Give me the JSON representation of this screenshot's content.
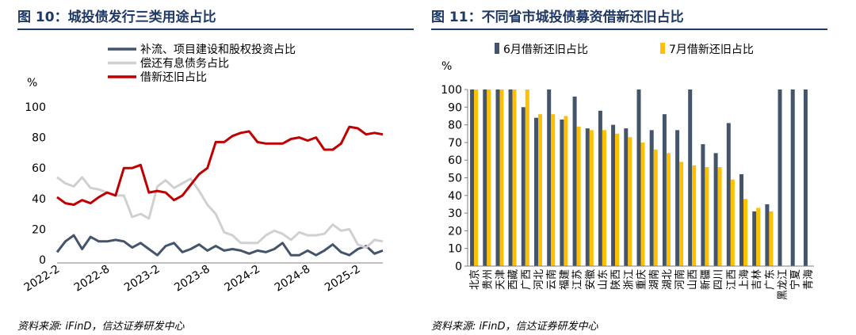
{
  "left": {
    "title": "图 10：城投债发行三类用途占比",
    "source": "资料来源: iFinD，信达证券研发中心",
    "chart_data": {
      "type": "line",
      "ylabel": "%",
      "ylim": [
        0,
        100
      ],
      "yticks": [
        0,
        20,
        40,
        60,
        80,
        100
      ],
      "xtick_labels": [
        "2022-2",
        "2022-8",
        "2023-2",
        "2023-8",
        "2024-2",
        "2024-8",
        "2025-2"
      ],
      "xtick_index": [
        0,
        6,
        12,
        18,
        24,
        30,
        36
      ],
      "legend_position": "top",
      "series": [
        {
          "name": "补流、项目建设和股权投资占比",
          "color": "#44546a",
          "values": [
            5,
            12,
            16,
            7,
            15,
            12,
            12,
            13,
            12,
            8,
            11,
            7,
            3,
            9,
            11,
            5,
            7,
            10,
            6,
            9,
            6,
            7,
            6,
            4,
            6,
            5,
            7,
            11,
            3,
            3,
            6,
            3,
            6,
            10,
            5,
            3,
            7,
            9,
            4,
            6
          ]
        },
        {
          "name": "偿还有息债务占比",
          "color": "#d0d0d0",
          "values": [
            54,
            50,
            48,
            54,
            47,
            46,
            44,
            42,
            42,
            28,
            30,
            27,
            48,
            52,
            47,
            50,
            53,
            45,
            36,
            30,
            18,
            16,
            11,
            11,
            11,
            16,
            19,
            17,
            13,
            18,
            16,
            16,
            17,
            23,
            19,
            20,
            10,
            8,
            13,
            12
          ]
        },
        {
          "name": "借新还旧占比",
          "color": "#c00000",
          "values": [
            41,
            37,
            36,
            39,
            37,
            41,
            44,
            42,
            60,
            60,
            62,
            44,
            45,
            44,
            39,
            42,
            49,
            56,
            60,
            77,
            77,
            81,
            83,
            84,
            77,
            76,
            76,
            76,
            79,
            80,
            78,
            80,
            72,
            72,
            76,
            87,
            86,
            82,
            83,
            82
          ]
        }
      ]
    }
  },
  "right": {
    "title": "图 11：不同省市城投债募资借新还旧占比",
    "source": "资料来源: iFinD，信达证券研发中心",
    "chart_data": {
      "type": "bar",
      "ylabel": "%",
      "ylim": [
        0,
        100
      ],
      "yticks": [
        0,
        10,
        20,
        30,
        40,
        50,
        60,
        70,
        80,
        90,
        100
      ],
      "legend_position": "top",
      "categories": [
        "北京",
        "贵州",
        "天津",
        "西藏",
        "广西",
        "河北",
        "云南",
        "福建",
        "江苏",
        "安徽",
        "山东",
        "陕西",
        "浙江",
        "重庆",
        "湖南",
        "湖北",
        "河南",
        "山西",
        "新疆",
        "四川",
        "江西",
        "上海",
        "吉林",
        "广东",
        "黑龙江",
        "宁夏",
        "青海"
      ],
      "series": [
        {
          "name": "6月借新还旧占比",
          "color": "#44546a",
          "values": [
            100,
            100,
            100,
            100,
            90,
            84,
            100,
            83,
            96,
            78,
            88,
            80,
            78,
            100,
            77,
            86,
            77,
            100,
            69,
            64,
            81,
            52,
            31,
            35,
            100,
            100,
            100
          ]
        },
        {
          "name": "7月借新还旧占比",
          "color": "#ffc000",
          "values": [
            100,
            100,
            100,
            100,
            100,
            86,
            86,
            85,
            79,
            77,
            77,
            75,
            73,
            70,
            66,
            64,
            59,
            57,
            56,
            56,
            49,
            38,
            33,
            31,
            null,
            null,
            null
          ]
        }
      ]
    }
  }
}
